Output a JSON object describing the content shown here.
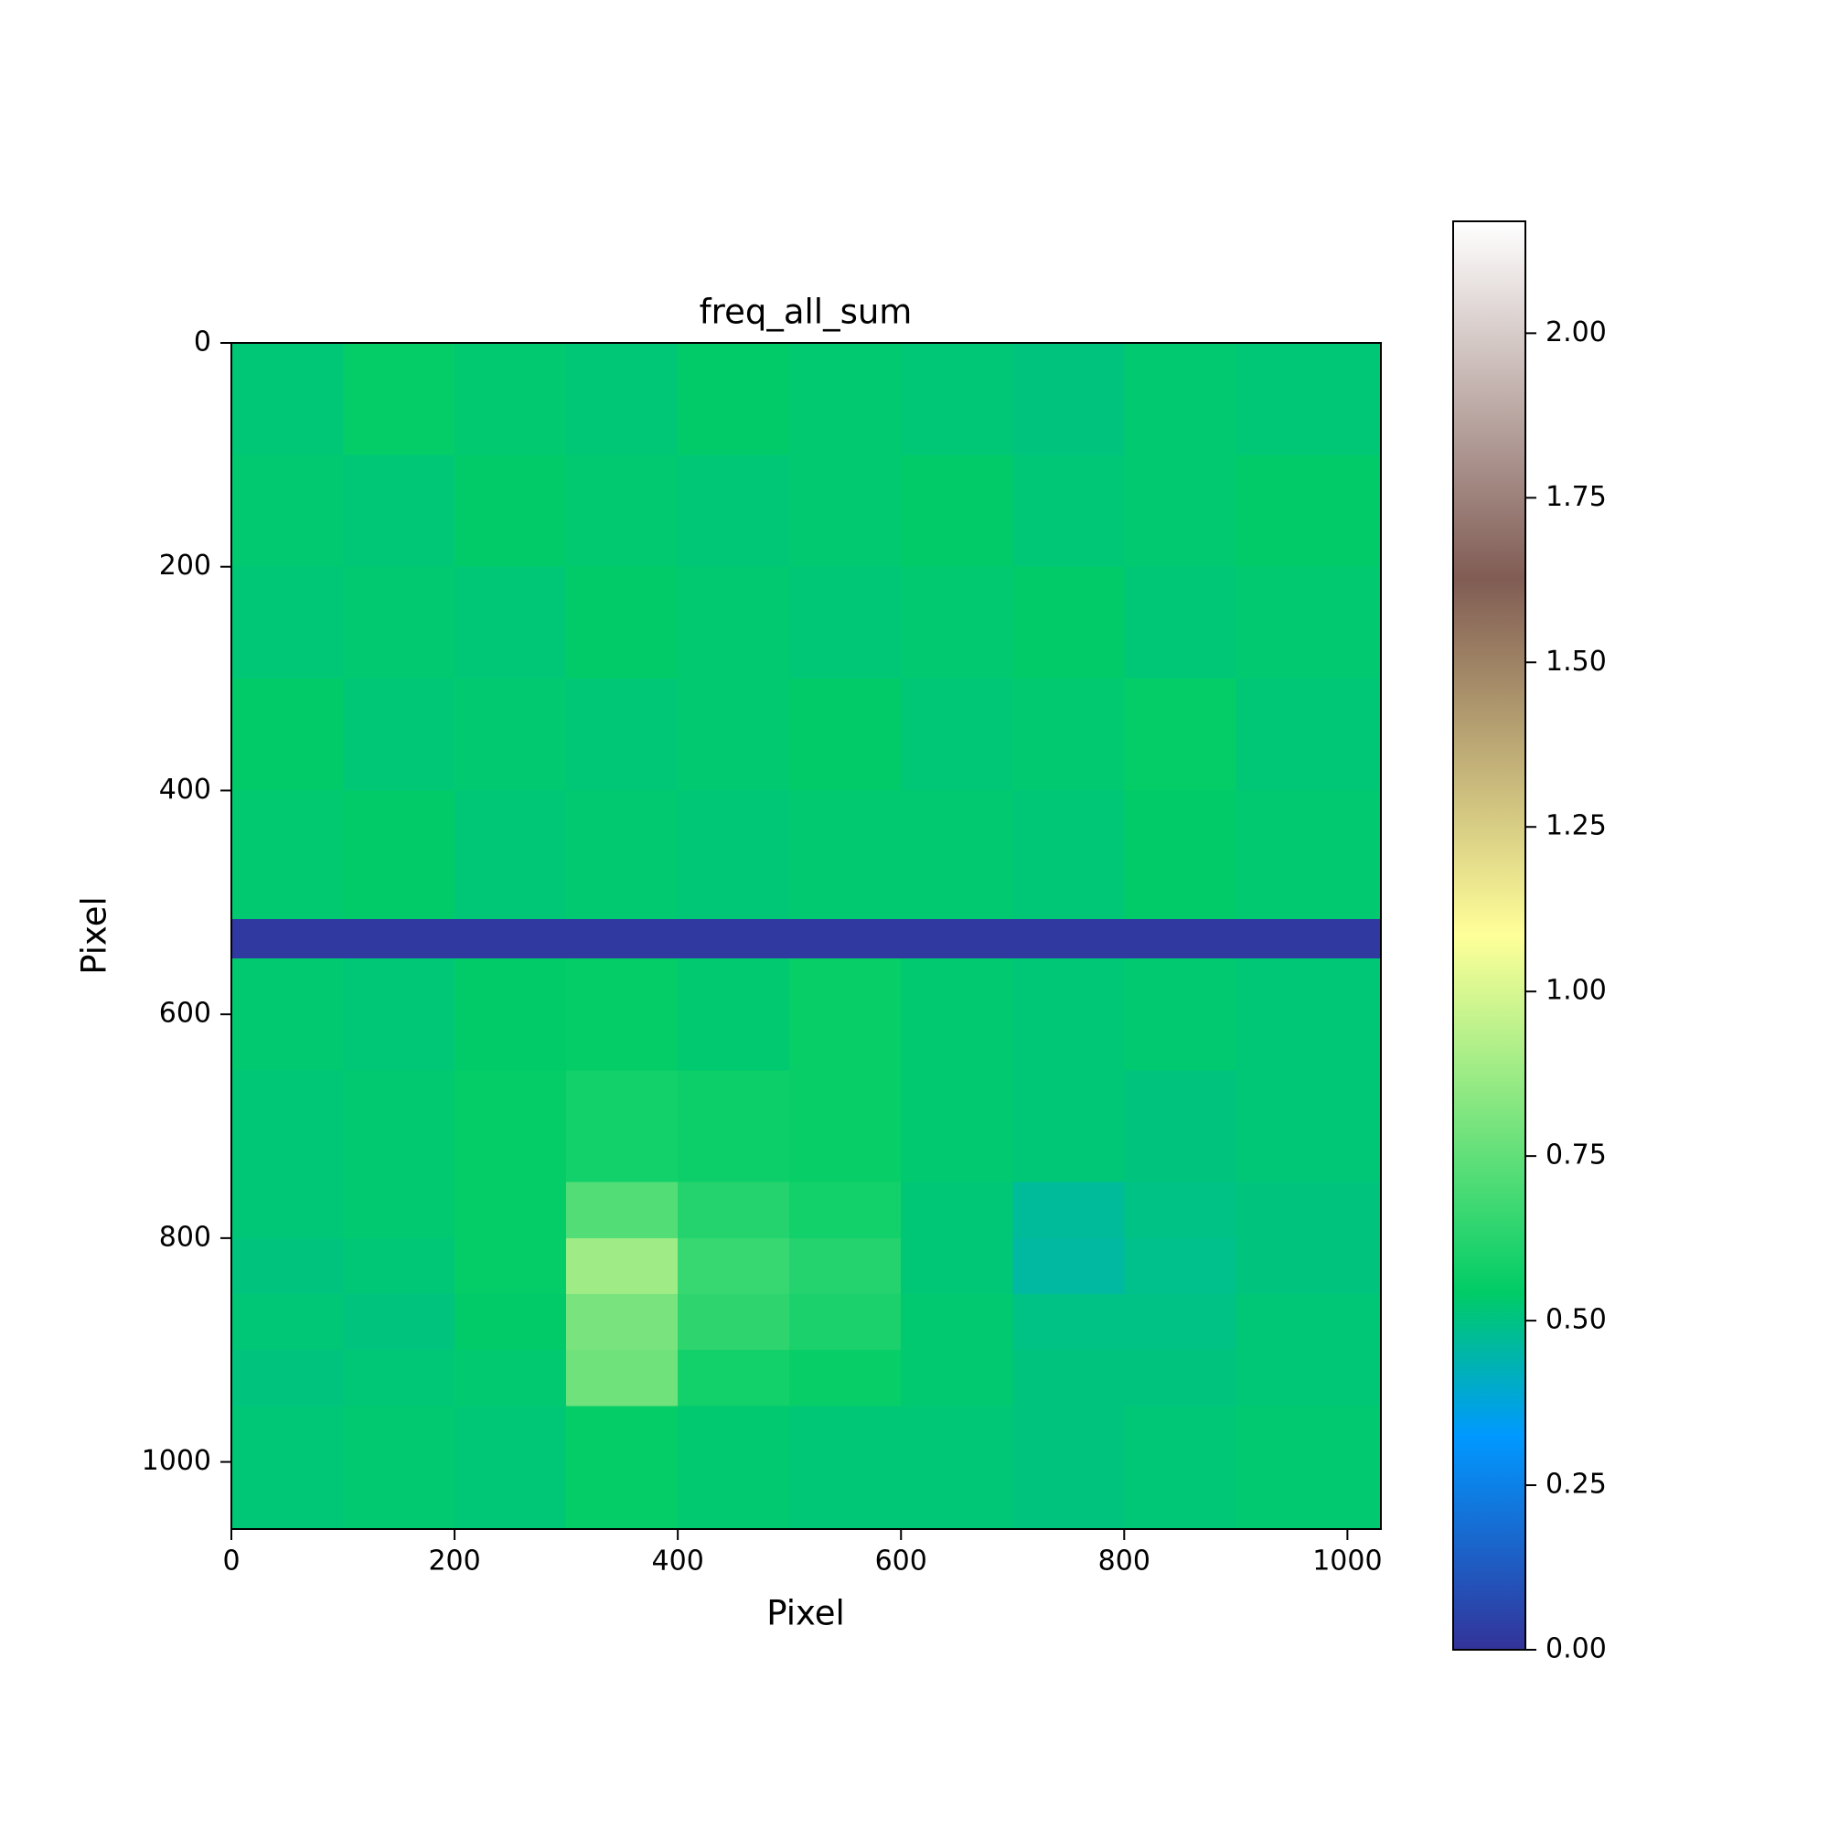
{
  "chart_data": {
    "type": "heatmap",
    "title": "freq_all_sum",
    "xlabel": "Pixel",
    "ylabel": "Pixel",
    "x_edges": [
      0,
      100,
      200,
      300,
      400,
      500,
      600,
      700,
      800,
      900,
      1030
    ],
    "y_edges": [
      0,
      100,
      200,
      300,
      400,
      515,
      550,
      650,
      750,
      800,
      850,
      900,
      950,
      1060
    ],
    "z": [
      [
        0.52,
        0.55,
        0.53,
        0.52,
        0.54,
        0.53,
        0.52,
        0.51,
        0.53,
        0.52
      ],
      [
        0.53,
        0.52,
        0.54,
        0.53,
        0.52,
        0.53,
        0.54,
        0.52,
        0.53,
        0.54
      ],
      [
        0.52,
        0.53,
        0.52,
        0.54,
        0.53,
        0.52,
        0.53,
        0.54,
        0.52,
        0.53
      ],
      [
        0.54,
        0.52,
        0.53,
        0.52,
        0.53,
        0.54,
        0.52,
        0.53,
        0.55,
        0.52
      ],
      [
        0.53,
        0.54,
        0.52,
        0.53,
        0.52,
        0.53,
        0.53,
        0.52,
        0.54,
        0.53
      ],
      [
        0.02,
        0.02,
        0.02,
        0.02,
        0.02,
        0.02,
        0.02,
        0.02,
        0.02,
        0.02
      ],
      [
        0.53,
        0.52,
        0.54,
        0.55,
        0.53,
        0.56,
        0.53,
        0.52,
        0.53,
        0.52
      ],
      [
        0.52,
        0.53,
        0.55,
        0.58,
        0.57,
        0.56,
        0.53,
        0.52,
        0.51,
        0.52
      ],
      [
        0.52,
        0.53,
        0.55,
        0.72,
        0.62,
        0.58,
        0.52,
        0.47,
        0.5,
        0.51
      ],
      [
        0.51,
        0.52,
        0.55,
        0.88,
        0.66,
        0.62,
        0.52,
        0.46,
        0.49,
        0.51
      ],
      [
        0.52,
        0.51,
        0.54,
        0.8,
        0.64,
        0.6,
        0.53,
        0.5,
        0.5,
        0.52
      ],
      [
        0.51,
        0.52,
        0.53,
        0.78,
        0.58,
        0.56,
        0.53,
        0.51,
        0.51,
        0.52
      ],
      [
        0.52,
        0.53,
        0.52,
        0.55,
        0.53,
        0.52,
        0.52,
        0.51,
        0.52,
        0.53
      ]
    ],
    "xlim": [
      0,
      1030
    ],
    "ylim": [
      1060,
      0
    ],
    "xticks": [
      0,
      200,
      400,
      600,
      800,
      1000
    ],
    "yticks": [
      0,
      200,
      400,
      600,
      800,
      1000
    ],
    "clim": [
      0,
      2.17
    ],
    "cticks": [
      {
        "value": 0,
        "label": "0.00"
      },
      {
        "value": 0.25,
        "label": "0.25"
      },
      {
        "value": 0.5,
        "label": "0.50"
      },
      {
        "value": 0.75,
        "label": "0.75"
      },
      {
        "value": 1,
        "label": "1.00"
      },
      {
        "value": 1.25,
        "label": "1.25"
      },
      {
        "value": 1.5,
        "label": "1.50"
      },
      {
        "value": 1.75,
        "label": "1.75"
      },
      {
        "value": 2,
        "label": "2.00"
      }
    ],
    "colormap": [
      {
        "at": 0,
        "color": "#333399"
      },
      {
        "at": 0.15,
        "color": "#0099ff"
      },
      {
        "at": 0.25,
        "color": "#00cc66"
      },
      {
        "at": 0.5,
        "color": "#ffff99"
      },
      {
        "at": 0.75,
        "color": "#805c54"
      },
      {
        "at": 1,
        "color": "#ffffff"
      }
    ]
  }
}
